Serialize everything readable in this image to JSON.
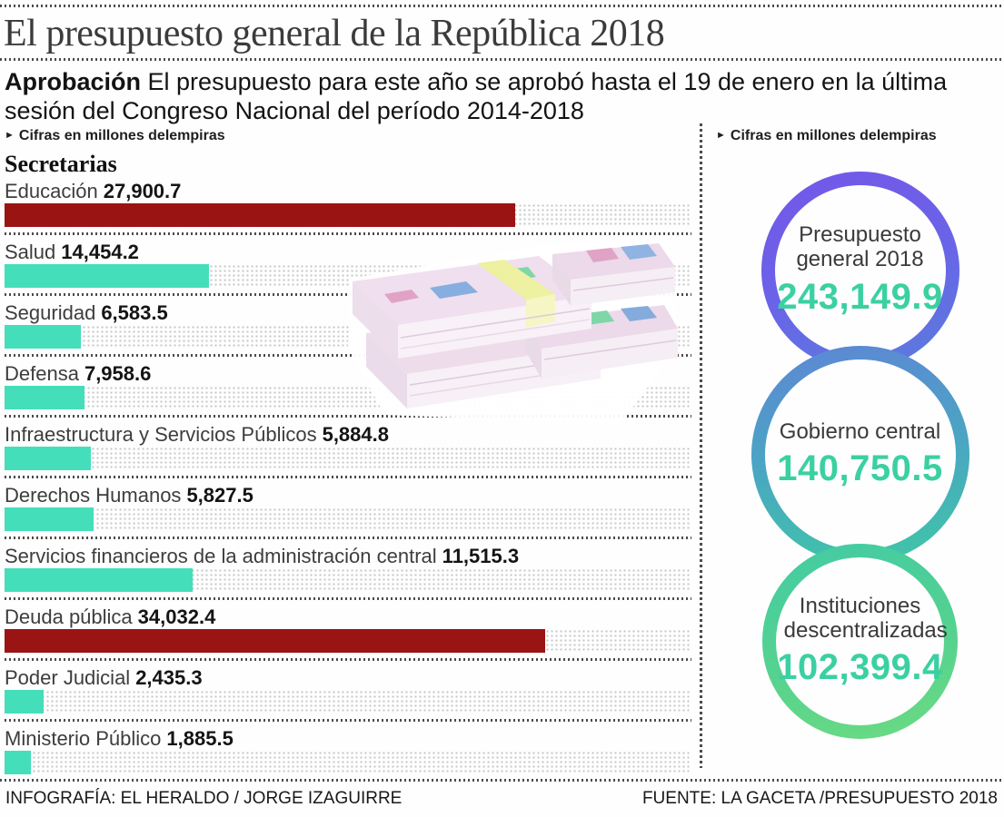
{
  "header": {
    "title": "El presupuesto general de la República 2018",
    "lead_label": "Aprobación",
    "lead_text": "El presupuesto para este año se aprobó hasta el 19 de enero en la última sesión del Congreso Nacional del período 2014-2018"
  },
  "icons": {
    "bullet": "►"
  },
  "left_panel": {
    "units_note": "Cifras en millones delempiras",
    "section_title": "Secretarias"
  },
  "right_panel": {
    "units_note": "Cifras en millones delempiras"
  },
  "chart_data": [
    {
      "type": "bar",
      "orientation": "horizontal",
      "title": "Secretarias",
      "units": "millones de lempiras",
      "categories": [
        "Educación",
        "Salud",
        "Seguridad",
        "Defensa",
        "Infraestructura y Servicios Públicos",
        "Derechos Humanos",
        "Servicios financieros de la administración central",
        "Deuda pública",
        "Poder Judicial",
        "Ministerio Público"
      ],
      "values": [
        27900.7,
        14454.2,
        6583.5,
        7958.6,
        5884.8,
        5827.5,
        11515.3,
        34032.4,
        2435.3,
        1885.5
      ],
      "value_labels": [
        "27,900.7",
        "14,454.2",
        "6,583.5",
        "7,958.6",
        "5,884.8",
        "5,827.5",
        "11,515.3",
        "34,032.4",
        "2,435.3",
        "1,885.5"
      ],
      "bar_colors": [
        "#9b1414",
        "#44dfba",
        "#44dfba",
        "#44dfba",
        "#44dfba",
        "#44dfba",
        "#44dfba",
        "#9b1414",
        "#44dfba",
        "#44dfba"
      ],
      "bar_width_pct": [
        74.4,
        29.7,
        11.1,
        11.7,
        12.6,
        13.0,
        27.4,
        78.7,
        5.7,
        3.8
      ],
      "grid": "dotted-track",
      "legend": "none"
    },
    {
      "type": "circle-badges",
      "units": "millones de lempiras",
      "items": [
        {
          "label": "Presupuesto general 2018",
          "value": 243149.9,
          "value_label": "243,149.9",
          "ring_colors": [
            "#7457e9",
            "#5a7ddc"
          ]
        },
        {
          "label": "Gobierno central",
          "value": 140750.5,
          "value_label": "140,750.5",
          "ring_colors": [
            "#5e86d6",
            "#3fc7a6"
          ]
        },
        {
          "label": "Instituciones descentralizadas",
          "value": 102399.4,
          "value_label": "102,399.4",
          "ring_colors": [
            "#43cba4",
            "#6cdb81"
          ]
        }
      ],
      "value_color": "#3bd0a2"
    }
  ],
  "colors": {
    "bar_red": "#9b1414",
    "bar_teal": "#44dfba",
    "number_teal": "#3bd0a2",
    "text_dark": "#3d3d3d"
  },
  "footer": {
    "credit": "INFOGRAFÍA: EL HERALDO / JORGE IZAGUIRRE",
    "source": "FUENTE: LA GACETA /PRESUPUESTO 2018"
  }
}
